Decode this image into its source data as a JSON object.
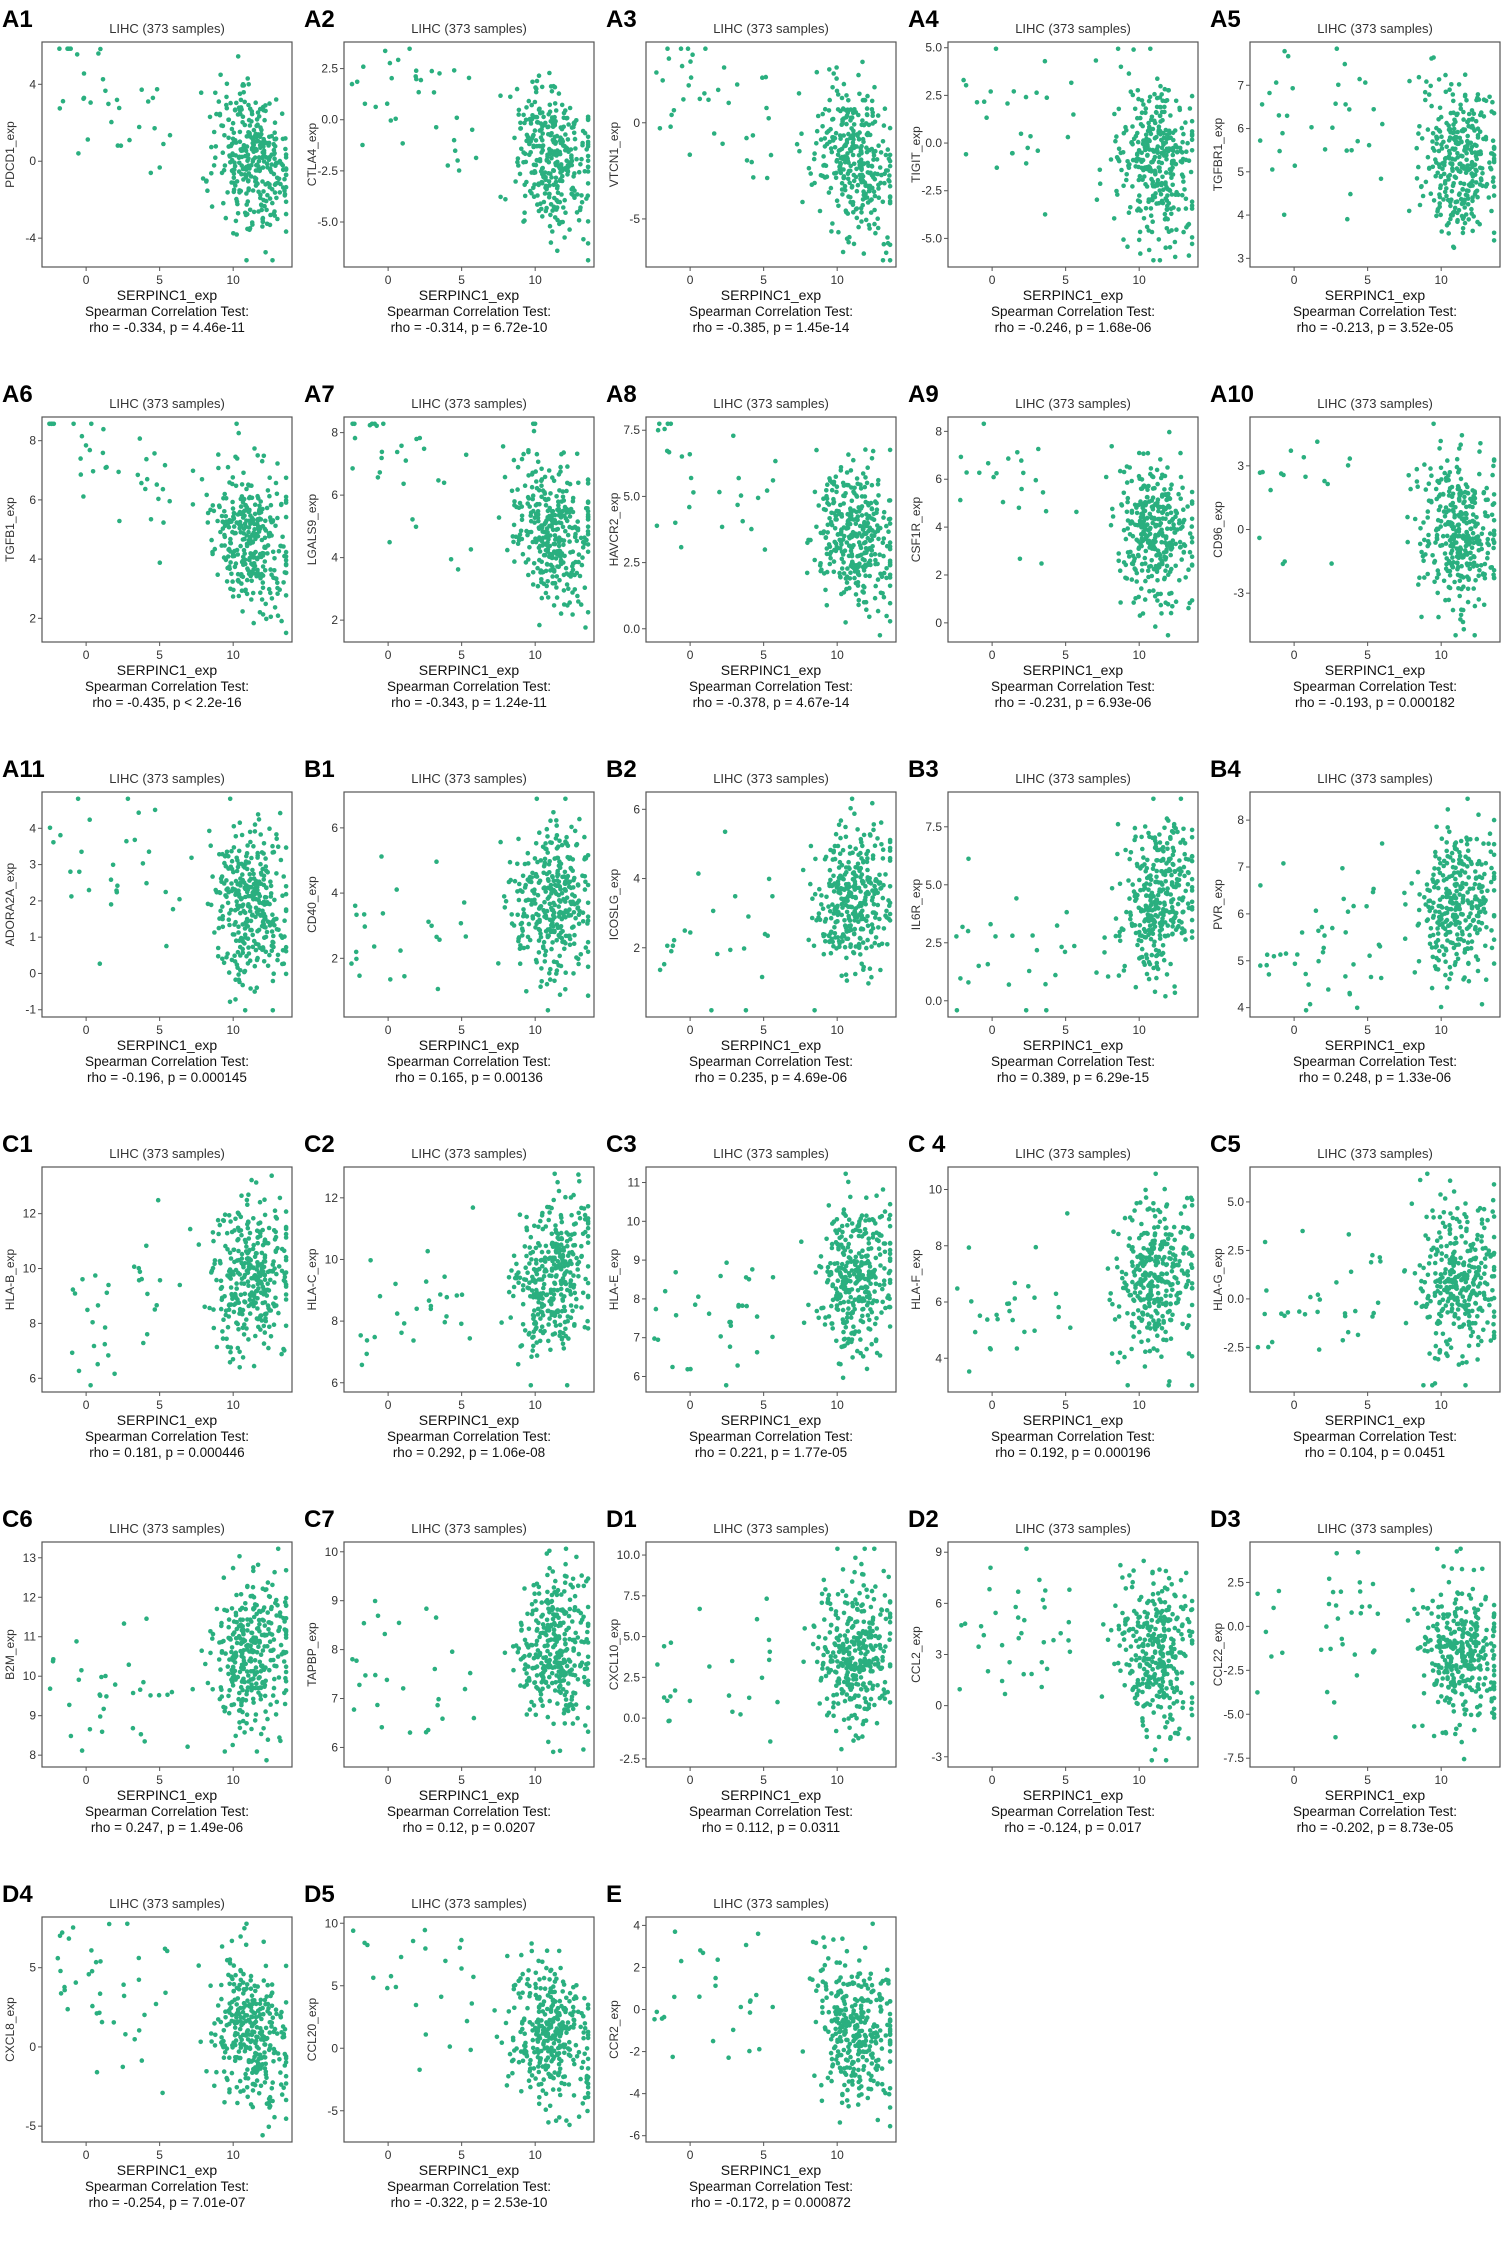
{
  "figure": {
    "dot_color": "#2aaf7f",
    "columns": 5
  },
  "chart_data": [
    {
      "panel": "A1",
      "type": "scatter",
      "title": "LIHC (373 samples)",
      "xlabel": "SERPINC1_exp",
      "ylabel": "PDCD1_exp",
      "xlim": [
        -3,
        14
      ],
      "ylim": [
        -5.5,
        6.2
      ],
      "xticks": [
        0,
        5,
        10
      ],
      "yticks": [
        -4,
        0,
        4
      ],
      "rho": -0.334,
      "stat_header": "Spearman Correlation Test:",
      "stat_text": "rho = -0.334, p = 4.46e-11",
      "seed": 1
    },
    {
      "panel": "A2",
      "type": "scatter",
      "title": "LIHC (373 samples)",
      "xlabel": "SERPINC1_exp",
      "ylabel": "CTLA4_exp",
      "xlim": [
        -3,
        14
      ],
      "ylim": [
        -7.2,
        3.8
      ],
      "xticks": [
        0,
        5,
        10
      ],
      "yticks": [
        -5.0,
        -2.5,
        0.0,
        2.5
      ],
      "rho": -0.314,
      "stat_header": "Spearman Correlation Test:",
      "stat_text": "rho = -0.314, p = 6.72e-10",
      "seed": 2
    },
    {
      "panel": "A3",
      "type": "scatter",
      "title": "LIHC (373 samples)",
      "xlabel": "SERPINC1_exp",
      "ylabel": "VTCN1_exp",
      "xlim": [
        -3,
        14
      ],
      "ylim": [
        -7.5,
        4.2
      ],
      "xticks": [
        0,
        5,
        10
      ],
      "yticks": [
        -5,
        0
      ],
      "rho": -0.385,
      "stat_header": "Spearman Correlation Test:",
      "stat_text": "rho = -0.385, p = 1.45e-14",
      "seed": 3
    },
    {
      "panel": "A4",
      "type": "scatter",
      "title": "LIHC (373 samples)",
      "xlabel": "SERPINC1_exp",
      "ylabel": "TIGIT_exp",
      "xlim": [
        -3,
        14
      ],
      "ylim": [
        -6.5,
        5.3
      ],
      "xticks": [
        0,
        5,
        10
      ],
      "yticks": [
        -5.0,
        -2.5,
        0.0,
        2.5,
        5.0
      ],
      "rho": -0.246,
      "stat_header": "Spearman Correlation Test:",
      "stat_text": "rho = -0.246, p = 1.68e-06",
      "seed": 4
    },
    {
      "panel": "A5",
      "type": "scatter",
      "title": "LIHC (373 samples)",
      "xlabel": "SERPINC1_exp",
      "ylabel": "TGFBR1_exp",
      "xlim": [
        -3,
        14
      ],
      "ylim": [
        2.8,
        8.0
      ],
      "xticks": [
        0,
        5,
        10
      ],
      "yticks": [
        3,
        4,
        5,
        6,
        7
      ],
      "rho": -0.213,
      "stat_header": "Spearman Correlation Test:",
      "stat_text": "rho = -0.213, p = 3.52e-05",
      "seed": 5
    },
    {
      "panel": "A6",
      "type": "scatter",
      "title": "LIHC (373 samples)",
      "xlabel": "SERPINC1_exp",
      "ylabel": "TGFB1_exp",
      "xlim": [
        -3,
        14
      ],
      "ylim": [
        1.2,
        8.8
      ],
      "xticks": [
        0,
        5,
        10
      ],
      "yticks": [
        2,
        4,
        6,
        8
      ],
      "rho": -0.435,
      "stat_header": "Spearman Correlation Test:",
      "stat_text": "rho = -0.435, p < 2.2e-16",
      "seed": 6
    },
    {
      "panel": "A7",
      "type": "scatter",
      "title": "LIHC (373 samples)",
      "xlabel": "SERPINC1_exp",
      "ylabel": "LGALS9_exp",
      "xlim": [
        -3,
        14
      ],
      "ylim": [
        1.3,
        8.5
      ],
      "xticks": [
        0,
        5,
        10
      ],
      "yticks": [
        2,
        4,
        6,
        8
      ],
      "rho": -0.343,
      "stat_header": "Spearman Correlation Test:",
      "stat_text": "rho = -0.343, p = 1.24e-11",
      "seed": 7
    },
    {
      "panel": "A8",
      "type": "scatter",
      "title": "LIHC (373 samples)",
      "xlabel": "SERPINC1_exp",
      "ylabel": "HAVCR2_exp",
      "xlim": [
        -3,
        14
      ],
      "ylim": [
        -0.5,
        8.0
      ],
      "xticks": [
        0,
        5,
        10
      ],
      "yticks": [
        0.0,
        2.5,
        5.0,
        7.5
      ],
      "rho": -0.378,
      "stat_header": "Spearman Correlation Test:",
      "stat_text": "rho = -0.378, p = 4.67e-14",
      "seed": 8
    },
    {
      "panel": "A9",
      "type": "scatter",
      "title": "LIHC (373 samples)",
      "xlabel": "SERPINC1_exp",
      "ylabel": "CSF1R_exp",
      "xlim": [
        -3,
        14
      ],
      "ylim": [
        -0.8,
        8.6
      ],
      "xticks": [
        0,
        5,
        10
      ],
      "yticks": [
        0,
        2,
        4,
        6,
        8
      ],
      "rho": -0.231,
      "stat_header": "Spearman Correlation Test:",
      "stat_text": "rho = -0.231, p = 6.93e-06",
      "seed": 9
    },
    {
      "panel": "A10",
      "type": "scatter",
      "title": "LIHC (373 samples)",
      "xlabel": "SERPINC1_exp",
      "ylabel": "CD96_exp",
      "xlim": [
        -3,
        14
      ],
      "ylim": [
        -5.3,
        5.3
      ],
      "xticks": [
        0,
        5,
        10
      ],
      "yticks": [
        -3,
        0,
        3
      ],
      "rho": -0.193,
      "stat_header": "Spearman Correlation Test:",
      "stat_text": "rho = -0.193, p = 0.000182",
      "seed": 10
    },
    {
      "panel": "A11",
      "type": "scatter",
      "title": "LIHC (373 samples)",
      "xlabel": "SERPINC1_exp",
      "ylabel": "ADORA2A_exp",
      "xlim": [
        -3,
        14
      ],
      "ylim": [
        -1.2,
        5.0
      ],
      "xticks": [
        0,
        5,
        10
      ],
      "yticks": [
        -1,
        0,
        1,
        2,
        3,
        4
      ],
      "rho": -0.196,
      "stat_header": "Spearman Correlation Test:",
      "stat_text": "rho = -0.196, p = 0.000145",
      "seed": 11
    },
    {
      "panel": "B1",
      "type": "scatter",
      "title": "LIHC (373 samples)",
      "xlabel": "SERPINC1_exp",
      "ylabel": "CD40_exp",
      "xlim": [
        -3,
        14
      ],
      "ylim": [
        0.2,
        7.1
      ],
      "xticks": [
        0,
        5,
        10
      ],
      "yticks": [
        2,
        4,
        6
      ],
      "rho": 0.165,
      "stat_header": "Spearman Correlation Test:",
      "stat_text": "rho = 0.165, p = 0.00136",
      "seed": 12
    },
    {
      "panel": "B2",
      "type": "scatter",
      "title": "LIHC (373 samples)",
      "xlabel": "SERPINC1_exp",
      "ylabel": "ICOSLG_exp",
      "xlim": [
        -3,
        14
      ],
      "ylim": [
        0.0,
        6.5
      ],
      "xticks": [
        0,
        5,
        10
      ],
      "yticks": [
        2,
        4,
        6
      ],
      "rho": 0.235,
      "stat_header": "Spearman Correlation Test:",
      "stat_text": "rho = 0.235, p = 4.69e-06",
      "seed": 13
    },
    {
      "panel": "B3",
      "type": "scatter",
      "title": "LIHC (373 samples)",
      "xlabel": "SERPINC1_exp",
      "ylabel": "IL6R_exp",
      "xlim": [
        -3,
        14
      ],
      "ylim": [
        -0.7,
        9.0
      ],
      "xticks": [
        0,
        5,
        10
      ],
      "yticks": [
        0.0,
        2.5,
        5.0,
        7.5
      ],
      "rho": 0.389,
      "stat_header": "Spearman Correlation Test:",
      "stat_text": "rho = 0.389, p = 6.29e-15",
      "seed": 14
    },
    {
      "panel": "B4",
      "type": "scatter",
      "title": "LIHC (373 samples)",
      "xlabel": "SERPINC1_exp",
      "ylabel": "PVR_exp",
      "xlim": [
        -3,
        14
      ],
      "ylim": [
        3.8,
        8.6
      ],
      "xticks": [
        0,
        5,
        10
      ],
      "yticks": [
        4,
        5,
        6,
        7,
        8
      ],
      "rho": 0.248,
      "stat_header": "Spearman Correlation Test:",
      "stat_text": "rho = 0.248, p = 1.33e-06",
      "seed": 15
    },
    {
      "panel": "C1",
      "type": "scatter",
      "title": "LIHC (373 samples)",
      "xlabel": "SERPINC1_exp",
      "ylabel": "HLA-B_exp",
      "xlim": [
        -3,
        14
      ],
      "ylim": [
        5.5,
        13.7
      ],
      "xticks": [
        0,
        5,
        10
      ],
      "yticks": [
        6,
        8,
        10,
        12
      ],
      "rho": 0.181,
      "stat_header": "Spearman Correlation Test:",
      "stat_text": "rho = 0.181, p = 0.000446",
      "seed": 16
    },
    {
      "panel": "C2",
      "type": "scatter",
      "title": "LIHC (373 samples)",
      "xlabel": "SERPINC1_exp",
      "ylabel": "HLA-C_exp",
      "xlim": [
        -3,
        14
      ],
      "ylim": [
        5.7,
        13.0
      ],
      "xticks": [
        0,
        5,
        10
      ],
      "yticks": [
        6,
        8,
        10,
        12
      ],
      "rho": 0.292,
      "stat_header": "Spearman Correlation Test:",
      "stat_text": "rho = 0.292, p = 1.06e-08",
      "seed": 17
    },
    {
      "panel": "C3",
      "type": "scatter",
      "title": "LIHC (373 samples)",
      "xlabel": "SERPINC1_exp",
      "ylabel": "HLA-E_exp",
      "xlim": [
        -3,
        14
      ],
      "ylim": [
        5.6,
        11.4
      ],
      "xticks": [
        0,
        5,
        10
      ],
      "yticks": [
        6,
        7,
        8,
        9,
        10,
        11
      ],
      "rho": 0.221,
      "stat_header": "Spearman Correlation Test:",
      "stat_text": "rho = 0.221, p = 1.77e-05",
      "seed": 18
    },
    {
      "panel": "C 4",
      "type": "scatter",
      "title": "LIHC (373 samples)",
      "xlabel": "SERPINC1_exp",
      "ylabel": "HLA-F_exp",
      "xlim": [
        -3,
        14
      ],
      "ylim": [
        2.8,
        10.8
      ],
      "xticks": [
        0,
        5,
        10
      ],
      "yticks": [
        4,
        6,
        8,
        10
      ],
      "rho": 0.192,
      "stat_header": "Spearman Correlation Test:",
      "stat_text": "rho = 0.192, p = 0.000196",
      "seed": 19
    },
    {
      "panel": "C5",
      "type": "scatter",
      "title": "LIHC (373 samples)",
      "xlabel": "SERPINC1_exp",
      "ylabel": "HLA-G_exp",
      "xlim": [
        -3,
        14
      ],
      "ylim": [
        -4.8,
        6.8
      ],
      "xticks": [
        0,
        5,
        10
      ],
      "yticks": [
        -2.5,
        0.0,
        2.5,
        5.0
      ],
      "rho": 0.104,
      "stat_header": "Spearman Correlation Test:",
      "stat_text": "rho = 0.104, p = 0.0451",
      "seed": 20
    },
    {
      "panel": "C6",
      "type": "scatter",
      "title": "LIHC (373 samples)",
      "xlabel": "SERPINC1_exp",
      "ylabel": "B2M_exp",
      "xlim": [
        -3,
        14
      ],
      "ylim": [
        7.7,
        13.4
      ],
      "xticks": [
        0,
        5,
        10
      ],
      "yticks": [
        8,
        9,
        10,
        11,
        12,
        13
      ],
      "rho": 0.247,
      "stat_header": "Spearman Correlation Test:",
      "stat_text": "rho = 0.247, p = 1.49e-06",
      "seed": 21
    },
    {
      "panel": "C7",
      "type": "scatter",
      "title": "LIHC (373 samples)",
      "xlabel": "SERPINC1_exp",
      "ylabel": "TAPBP_exp",
      "xlim": [
        -3,
        14
      ],
      "ylim": [
        5.6,
        10.2
      ],
      "xticks": [
        0,
        5,
        10
      ],
      "yticks": [
        6,
        7,
        8,
        9,
        10
      ],
      "rho": 0.12,
      "stat_header": "Spearman Correlation Test:",
      "stat_text": "rho = 0.12, p = 0.0207",
      "seed": 22
    },
    {
      "panel": "D1",
      "type": "scatter",
      "title": "LIHC (373 samples)",
      "xlabel": "SERPINC1_exp",
      "ylabel": "CXCL10_exp",
      "xlim": [
        -3,
        14
      ],
      "ylim": [
        -3.0,
        10.8
      ],
      "xticks": [
        0,
        5,
        10
      ],
      "yticks": [
        -2.5,
        0.0,
        2.5,
        5.0,
        7.5,
        10.0
      ],
      "rho": 0.112,
      "stat_header": "Spearman Correlation Test:",
      "stat_text": "rho = 0.112, p = 0.0311",
      "seed": 23
    },
    {
      "panel": "D2",
      "type": "scatter",
      "title": "LIHC (373 samples)",
      "xlabel": "SERPINC1_exp",
      "ylabel": "CCL2_exp",
      "xlim": [
        -3,
        14
      ],
      "ylim": [
        -3.6,
        9.6
      ],
      "xticks": [
        0,
        5,
        10
      ],
      "yticks": [
        -3,
        0,
        3,
        6,
        9
      ],
      "rho": -0.124,
      "stat_header": "Spearman Correlation Test:",
      "stat_text": "rho = -0.124, p = 0.017",
      "seed": 24
    },
    {
      "panel": "D3",
      "type": "scatter",
      "title": "LIHC (373 samples)",
      "xlabel": "SERPINC1_exp",
      "ylabel": "CCL22_exp",
      "xlim": [
        -3,
        14
      ],
      "ylim": [
        -8.0,
        4.8
      ],
      "xticks": [
        0,
        5,
        10
      ],
      "yticks": [
        -7.5,
        -5.0,
        -2.5,
        0.0,
        2.5
      ],
      "rho": -0.202,
      "stat_header": "Spearman Correlation Test:",
      "stat_text": "rho = -0.202, p = 8.73e-05",
      "seed": 25
    },
    {
      "panel": "D4",
      "type": "scatter",
      "title": "LIHC (373 samples)",
      "xlabel": "SERPINC1_exp",
      "ylabel": "CXCL8_exp",
      "xlim": [
        -3,
        14
      ],
      "ylim": [
        -6.0,
        8.2
      ],
      "xticks": [
        0,
        5,
        10
      ],
      "yticks": [
        -5,
        0,
        5
      ],
      "rho": -0.254,
      "stat_header": "Spearman Correlation Test:",
      "stat_text": "rho = -0.254, p = 7.01e-07",
      "seed": 26
    },
    {
      "panel": "D5",
      "type": "scatter",
      "title": "LIHC (373 samples)",
      "xlabel": "SERPINC1_exp",
      "ylabel": "CCL20_exp",
      "xlim": [
        -3,
        14
      ],
      "ylim": [
        -7.5,
        10.5
      ],
      "xticks": [
        0,
        5,
        10
      ],
      "yticks": [
        -5,
        0,
        5,
        10
      ],
      "rho": -0.322,
      "stat_header": "Spearman Correlation Test:",
      "stat_text": "rho = -0.322, p = 2.53e-10",
      "seed": 27
    },
    {
      "panel": "E",
      "type": "scatter",
      "title": "LIHC (373 samples)",
      "xlabel": "SERPINC1_exp",
      "ylabel": "CCR2_exp",
      "xlim": [
        -3,
        14
      ],
      "ylim": [
        -6.3,
        4.4
      ],
      "xticks": [
        0,
        5,
        10
      ],
      "yticks": [
        -6,
        -4,
        -2,
        0,
        2,
        4
      ],
      "rho": -0.172,
      "stat_header": "Spearman Correlation Test:",
      "stat_text": "rho = -0.172, p = 0.000872",
      "seed": 28
    }
  ]
}
